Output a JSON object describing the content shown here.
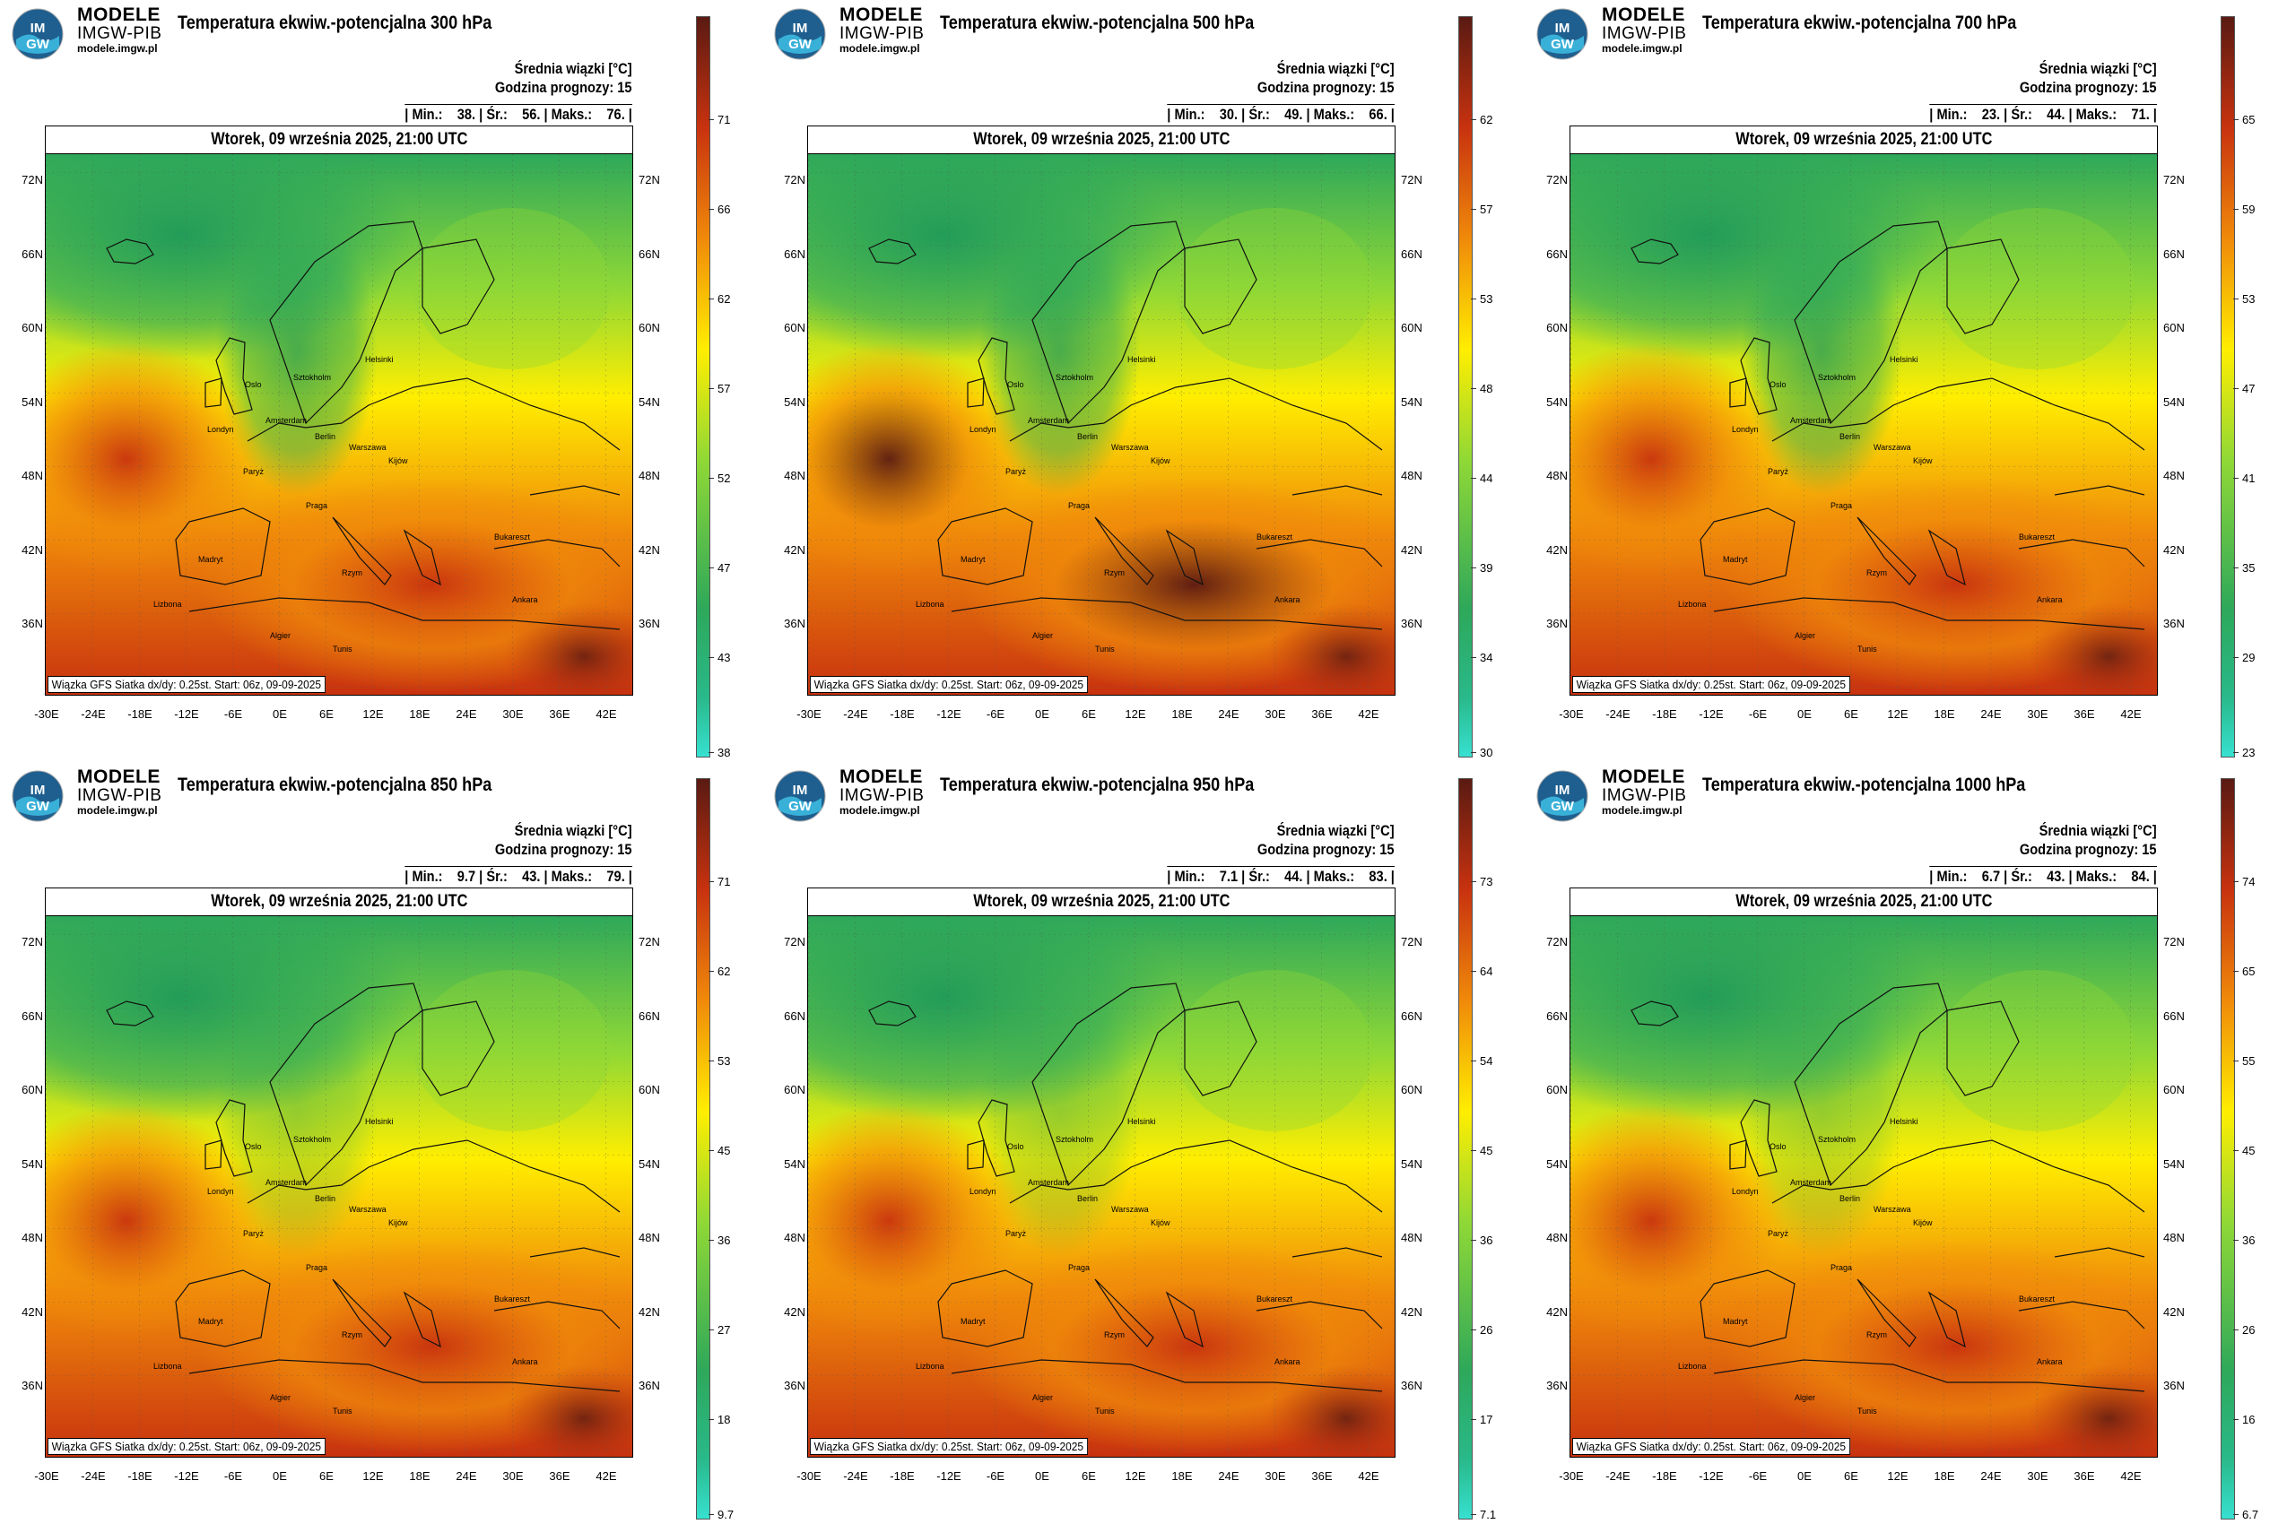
{
  "brand": {
    "line1": "MODELE",
    "line2": "IMGW-PIB",
    "line3": "modele.imgw.pl",
    "logo_text": "IMGW"
  },
  "common": {
    "info_line1": "Średnia wiązki [°C]",
    "info_line2": "Godzina prognozy: 15",
    "date": "Wtorek, 09 września 2025, 21:00 UTC",
    "footer": "Wiązka GFS Siatka dx/dy: 0.25st. Start: 06z, 09-09-2025",
    "lat_labels": [
      "72N",
      "66N",
      "60N",
      "54N",
      "48N",
      "42N",
      "36N"
    ],
    "lon_labels": [
      "-30E",
      "-24E",
      "-18E",
      "-12E",
      "-6E",
      "0E",
      "6E",
      "12E",
      "18E",
      "24E",
      "30E",
      "36E",
      "42E"
    ]
  },
  "colors": {
    "cold": "#37e0d0",
    "green": "#2ea85a",
    "lightgreen": "#8fd836",
    "yellow": "#ffee00",
    "orange": "#f08a0a",
    "red": "#c8320f",
    "darkred": "#5a1a12"
  },
  "panels": [
    {
      "title": "Temperatura ekwiw.-potencjalna 300 hPa",
      "stats": "| Min.:    38. | Śr.:    56. | Maks.:    76. |",
      "colorbar": [
        "71",
        "66",
        "62",
        "57",
        "52",
        "47",
        "43",
        "38"
      ]
    },
    {
      "title": "Temperatura ekwiw.-potencjalna 500 hPa",
      "stats": "| Min.:    30. | Śr.:    49. | Maks.:    66. |",
      "colorbar": [
        "62",
        "57",
        "53",
        "48",
        "44",
        "39",
        "34",
        "30"
      ]
    },
    {
      "title": "Temperatura ekwiw.-potencjalna 700 hPa",
      "stats": "| Min.:    23. | Śr.:    44. | Maks.:    71. |",
      "colorbar": [
        "65",
        "59",
        "53",
        "47",
        "41",
        "35",
        "29",
        "23"
      ]
    },
    {
      "title": "Temperatura ekwiw.-potencjalna 850 hPa",
      "stats": "| Min.:    9.7 | Śr.:    43. | Maks.:    79. |",
      "colorbar": [
        "71",
        "62",
        "53",
        "45",
        "36",
        "27",
        "18",
        "9.7"
      ]
    },
    {
      "title": "Temperatura ekwiw.-potencjalna 950 hPa",
      "stats": "| Min.:    7.1 | Śr.:    44. | Maks.:    83. |",
      "colorbar": [
        "73",
        "64",
        "54",
        "45",
        "36",
        "26",
        "17",
        "7.1"
      ]
    },
    {
      "title": "Temperatura ekwiw.-potencjalna 1000 hPa",
      "stats": "| Min.:    6.7 | Śr.:    43. | Maks.:    84. |",
      "colorbar": [
        "74",
        "65",
        "55",
        "45",
        "36",
        "26",
        "16",
        "6.7"
      ]
    }
  ]
}
